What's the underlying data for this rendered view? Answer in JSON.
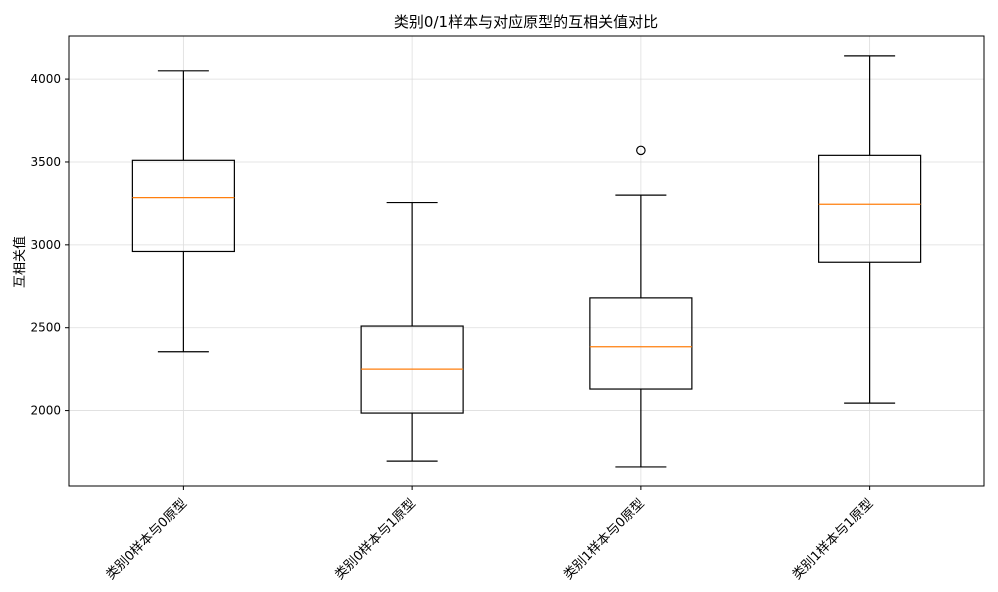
{
  "chart_data": {
    "type": "box",
    "title": "类别0/1样本与对应原型的互相关值对比",
    "xlabel": "",
    "ylabel": "互相关值",
    "ylim": [
      1545,
      4260
    ],
    "yticks": [
      2000,
      2500,
      3000,
      3500,
      4000
    ],
    "grid": true,
    "categories": [
      "类别0样本与0原型",
      "类别0样本与1原型",
      "类别1样本与0原型",
      "类别1样本与1原型"
    ],
    "boxes": [
      {
        "whisker_low": 2355,
        "q1": 2960,
        "median": 3285,
        "q3": 3510,
        "whisker_high": 4050,
        "outliers": []
      },
      {
        "whisker_low": 1695,
        "q1": 1985,
        "median": 2250,
        "q3": 2510,
        "whisker_high": 3255,
        "outliers": []
      },
      {
        "whisker_low": 1660,
        "q1": 2130,
        "median": 2385,
        "q3": 2680,
        "whisker_high": 3300,
        "outliers": [
          3570
        ]
      },
      {
        "whisker_low": 2045,
        "q1": 2895,
        "median": 3245,
        "q3": 3540,
        "whisker_high": 4140,
        "outliers": []
      }
    ],
    "colors": {
      "box": "#000000",
      "median": "#ff7f0e",
      "grid": "#dddddd"
    }
  }
}
